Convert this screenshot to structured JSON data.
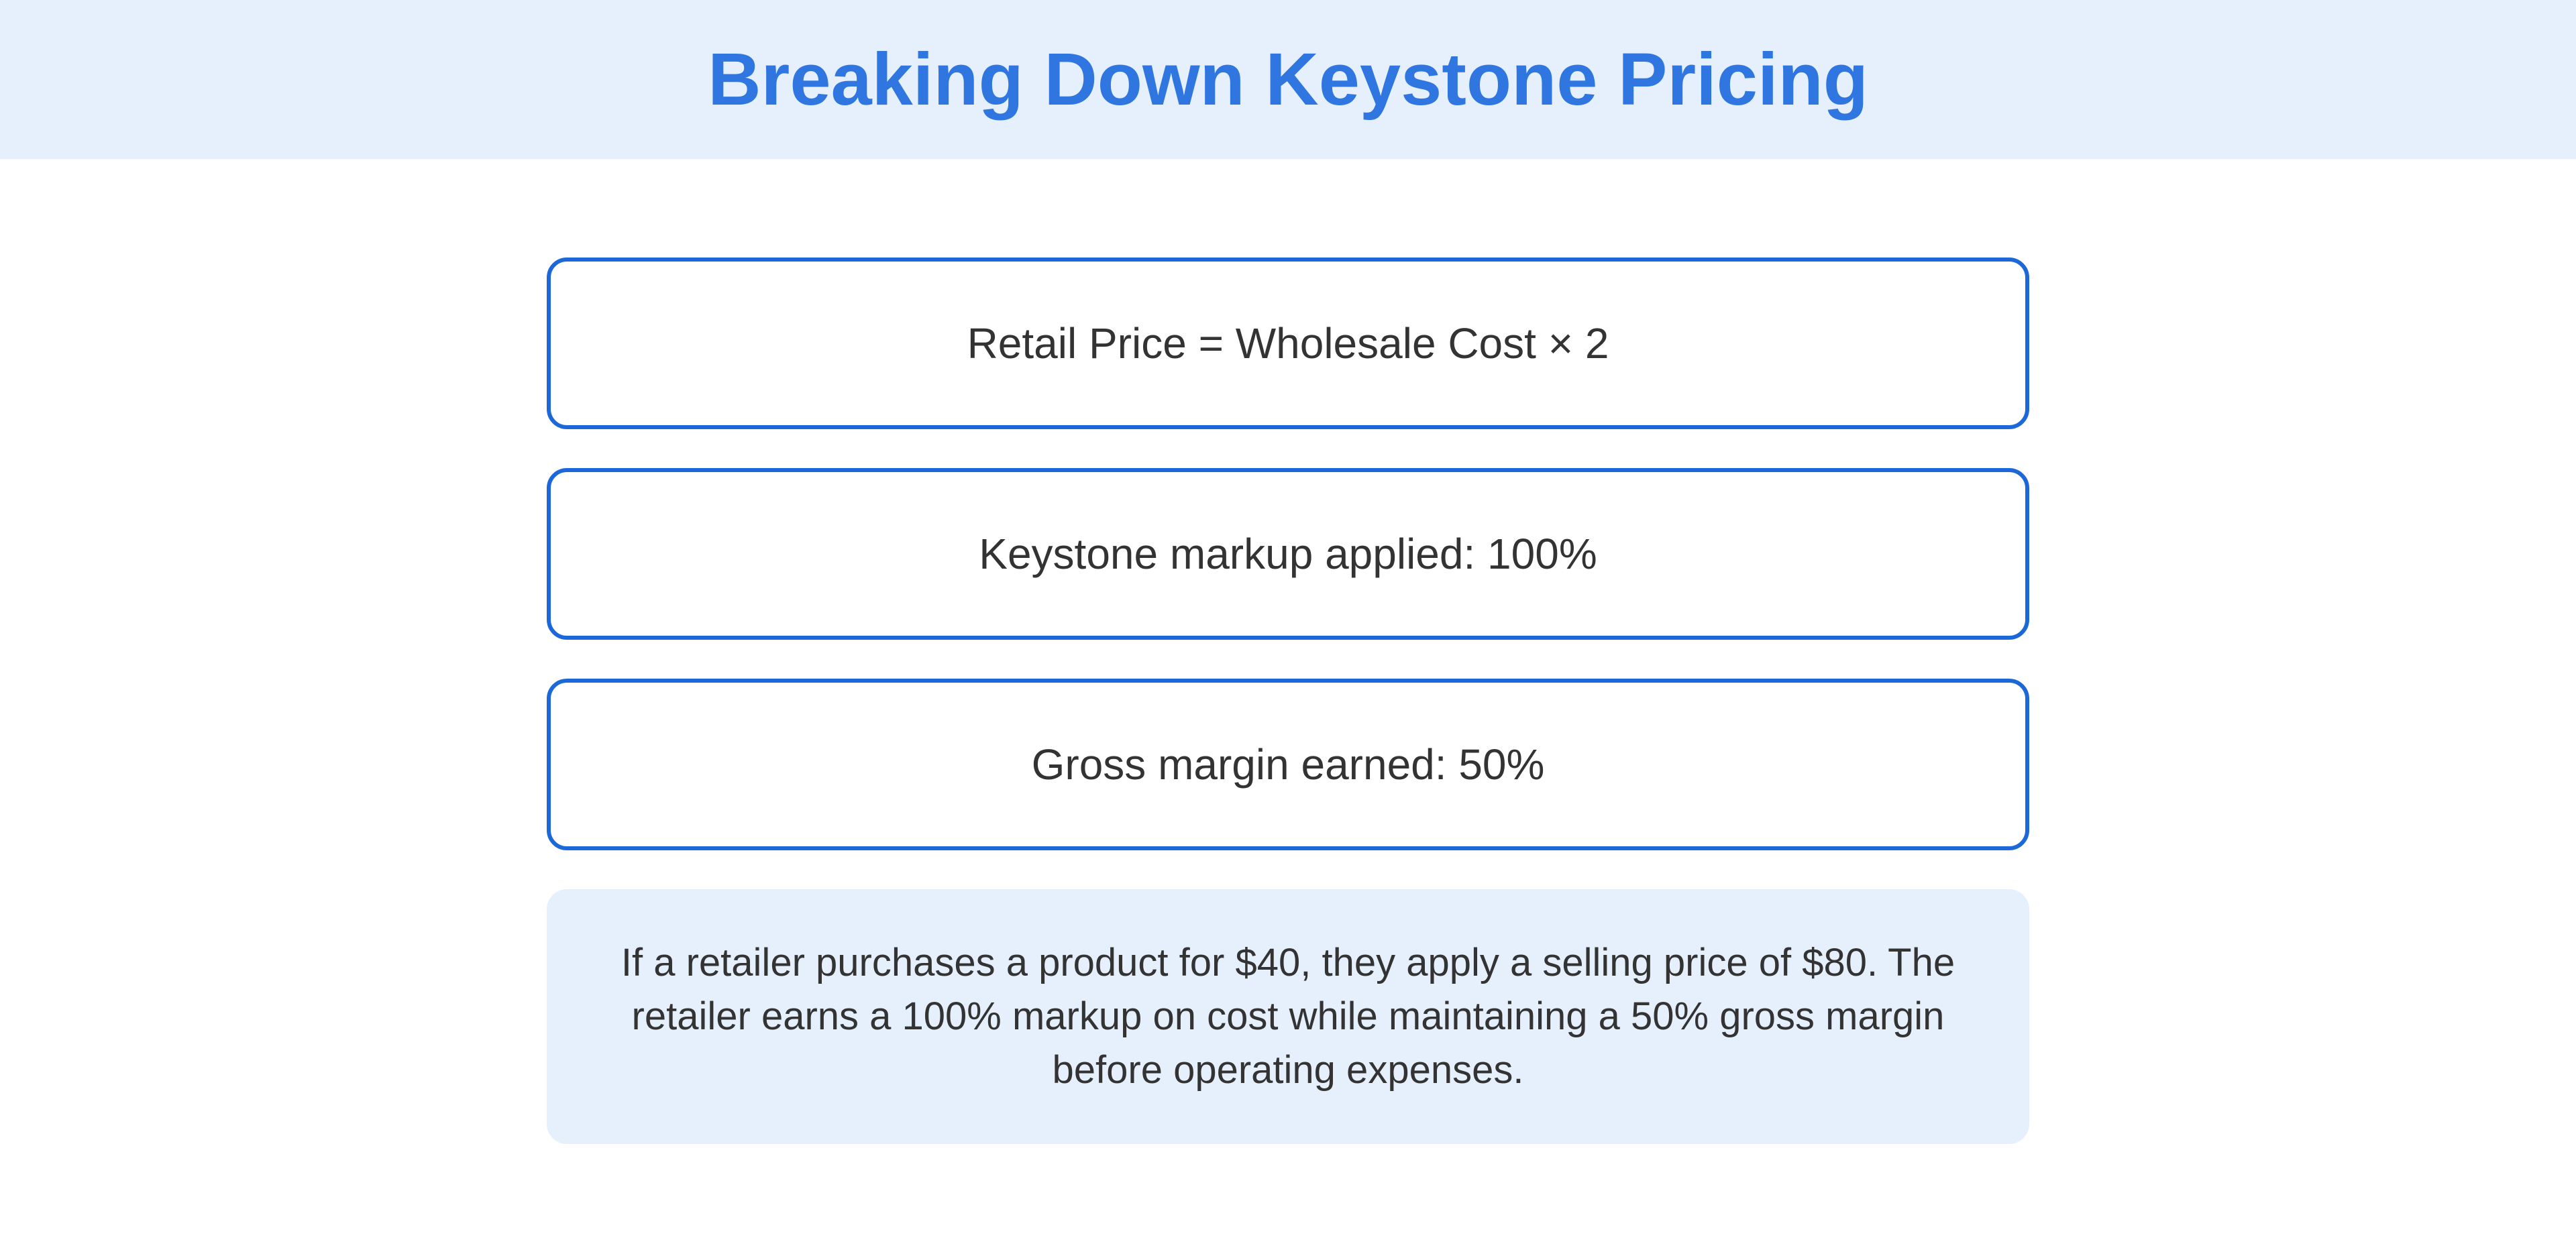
{
  "header": {
    "title": "Breaking Down Keystone Pricing"
  },
  "boxes": [
    {
      "text": "Retail Price = Wholesale Cost × 2"
    },
    {
      "text": "Keystone markup applied: 100%"
    },
    {
      "text": "Gross margin earned: 50%"
    }
  ],
  "example": {
    "text": "If a retailer purchases a product for $40, they apply a selling price of $80. The retailer earns a 100% markup on cost while maintaining a 50% gross margin before operating expenses."
  },
  "colors": {
    "accent": "#2f76e0",
    "border": "#1d68d8",
    "header_bg": "#e6f0fd",
    "text": "#333333"
  }
}
